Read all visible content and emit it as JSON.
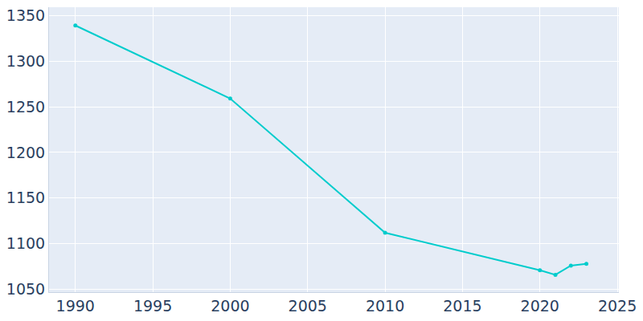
{
  "chart_data": {
    "type": "line",
    "x": [
      1990,
      2000,
      2010,
      2020,
      2021,
      2022,
      2023
    ],
    "values": [
      1339,
      1259,
      1112,
      1071,
      1066,
      1076,
      1078
    ],
    "color": "#00cccc",
    "marker": "circle",
    "xlim": [
      1988.3,
      2025.1
    ],
    "ylim": [
      1047,
      1359
    ],
    "xticks": [
      1990,
      1995,
      2000,
      2005,
      2010,
      2015,
      2020,
      2025
    ],
    "yticks": [
      1050,
      1100,
      1150,
      1200,
      1250,
      1300,
      1350
    ],
    "grid": true
  }
}
